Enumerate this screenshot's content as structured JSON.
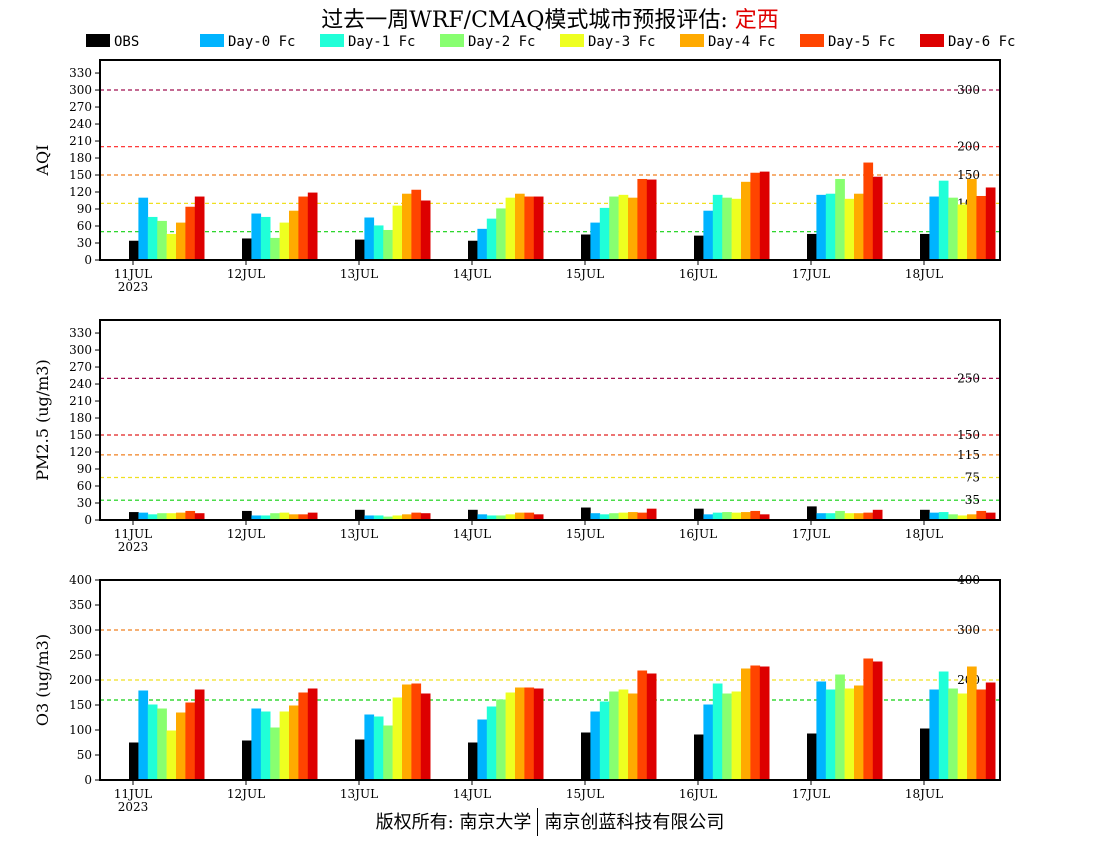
{
  "title": {
    "prefix": "过去一周WRF/CMAQ模式城市预报评估: ",
    "city": "定西"
  },
  "footer": {
    "left": "版权所有: 南京大学",
    "right": "南京创蓝科技有限公司"
  },
  "legend": [
    {
      "label": "OBS",
      "color": "#000000"
    },
    {
      "label": "Day-0 Fc",
      "color": "#00b4ff"
    },
    {
      "label": "Day-1 Fc",
      "color": "#20ffd8"
    },
    {
      "label": "Day-2 Fc",
      "color": "#88ff70"
    },
    {
      "label": "Day-3 Fc",
      "color": "#eeff20"
    },
    {
      "label": "Day-4 Fc",
      "color": "#ffaa00"
    },
    {
      "label": "Day-5 Fc",
      "color": "#ff4400"
    },
    {
      "label": "Day-6 Fc",
      "color": "#dd0000"
    }
  ],
  "chart_data": [
    {
      "type": "bar",
      "ylabel": "AQI",
      "ylim": [
        0,
        353
      ],
      "yticks": [
        0,
        30,
        60,
        90,
        120,
        150,
        180,
        210,
        240,
        270,
        300,
        330
      ],
      "categories": [
        "11JUL",
        "12JUL",
        "13JUL",
        "14JUL",
        "15JUL",
        "16JUL",
        "17JUL",
        "18JUL"
      ],
      "year_label": "2023",
      "ref_lines": [
        {
          "value": 300,
          "label": "300",
          "color": "#a01050"
        },
        {
          "value": 200,
          "label": "200",
          "color": "#ff2020"
        },
        {
          "value": 150,
          "label": "150",
          "color": "#f08020"
        },
        {
          "value": 100,
          "label": "100",
          "color": "#f0e020"
        },
        {
          "value": 50,
          "label": "50",
          "color": "#10d010"
        }
      ],
      "series": [
        {
          "name": "OBS",
          "values": [
            34,
            38,
            36,
            34,
            45,
            43,
            46,
            46
          ]
        },
        {
          "name": "Day-0 Fc",
          "values": [
            110,
            82,
            75,
            55,
            66,
            87,
            115,
            112
          ]
        },
        {
          "name": "Day-1 Fc",
          "values": [
            76,
            76,
            61,
            73,
            92,
            115,
            117,
            140
          ]
        },
        {
          "name": "Day-2 Fc",
          "values": [
            69,
            39,
            53,
            91,
            112,
            110,
            143,
            110
          ]
        },
        {
          "name": "Day-3 Fc",
          "values": [
            46,
            66,
            96,
            110,
            115,
            108,
            108,
            98
          ]
        },
        {
          "name": "Day-4 Fc",
          "values": [
            66,
            87,
            117,
            117,
            110,
            138,
            117,
            143
          ]
        },
        {
          "name": "Day-5 Fc",
          "values": [
            94,
            112,
            124,
            112,
            143,
            154,
            172,
            113
          ]
        },
        {
          "name": "Day-6 Fc",
          "values": [
            112,
            119,
            105,
            112,
            142,
            156,
            147,
            128
          ]
        }
      ]
    },
    {
      "type": "bar",
      "ylabel": "PM2.5 (ug/m3)",
      "ylim": [
        0,
        353
      ],
      "yticks": [
        0,
        30,
        60,
        90,
        120,
        150,
        180,
        210,
        240,
        270,
        300,
        330
      ],
      "categories": [
        "11JUL",
        "12JUL",
        "13JUL",
        "14JUL",
        "15JUL",
        "16JUL",
        "17JUL",
        "18JUL"
      ],
      "year_label": "2023",
      "ref_lines": [
        {
          "value": 250,
          "label": "250",
          "color": "#a01050"
        },
        {
          "value": 150,
          "label": "150",
          "color": "#e02020"
        },
        {
          "value": 115,
          "label": "115",
          "color": "#f08020"
        },
        {
          "value": 75,
          "label": "75",
          "color": "#f0e020"
        },
        {
          "value": 35,
          "label": "35",
          "color": "#10d010"
        }
      ],
      "series": [
        {
          "name": "OBS",
          "values": [
            14,
            16,
            18,
            18,
            22,
            20,
            24,
            18
          ]
        },
        {
          "name": "Day-0 Fc",
          "values": [
            13,
            8,
            8,
            10,
            12,
            10,
            12,
            13
          ]
        },
        {
          "name": "Day-1 Fc",
          "values": [
            10,
            8,
            8,
            8,
            10,
            13,
            12,
            14
          ]
        },
        {
          "name": "Day-2 Fc",
          "values": [
            12,
            12,
            6,
            8,
            12,
            14,
            16,
            10
          ]
        },
        {
          "name": "Day-3 Fc",
          "values": [
            12,
            13,
            8,
            10,
            13,
            13,
            12,
            8
          ]
        },
        {
          "name": "Day-4 Fc",
          "values": [
            13,
            10,
            10,
            13,
            14,
            14,
            12,
            10
          ]
        },
        {
          "name": "Day-5 Fc",
          "values": [
            16,
            10,
            13,
            13,
            13,
            16,
            13,
            16
          ]
        },
        {
          "name": "Day-6 Fc",
          "values": [
            12,
            13,
            12,
            10,
            20,
            10,
            18,
            13
          ]
        }
      ]
    },
    {
      "type": "bar",
      "ylabel": "O3 (ug/m3)",
      "ylim": [
        0,
        400
      ],
      "yticks": [
        0,
        50,
        100,
        150,
        200,
        250,
        300,
        350,
        400
      ],
      "categories": [
        "11JUL",
        "12JUL",
        "13JUL",
        "14JUL",
        "15JUL",
        "16JUL",
        "17JUL",
        "18JUL"
      ],
      "year_label": "2023",
      "ref_lines": [
        {
          "value": 400,
          "label": "400",
          "color": "#ff2020"
        },
        {
          "value": 300,
          "label": "300",
          "color": "#f08020"
        },
        {
          "value": 200,
          "label": "200",
          "color": "#f0e020"
        },
        {
          "value": 160,
          "label": "160",
          "color": "#10d010"
        }
      ],
      "series": [
        {
          "name": "OBS",
          "values": [
            75,
            79,
            81,
            75,
            95,
            91,
            93,
            103
          ]
        },
        {
          "name": "Day-0 Fc",
          "values": [
            179,
            143,
            131,
            121,
            137,
            151,
            197,
            181
          ]
        },
        {
          "name": "Day-1 Fc",
          "values": [
            151,
            137,
            127,
            147,
            157,
            193,
            181,
            217
          ]
        },
        {
          "name": "Day-2 Fc",
          "values": [
            143,
            105,
            109,
            161,
            177,
            173,
            211,
            183
          ]
        },
        {
          "name": "Day-3 Fc",
          "values": [
            99,
            137,
            165,
            175,
            181,
            177,
            183,
            173
          ]
        },
        {
          "name": "Day-4 Fc",
          "values": [
            135,
            149,
            191,
            185,
            173,
            223,
            189,
            227
          ]
        },
        {
          "name": "Day-5 Fc",
          "values": [
            155,
            175,
            193,
            185,
            219,
            229,
            243,
            181
          ]
        },
        {
          "name": "Day-6 Fc",
          "values": [
            181,
            183,
            173,
            183,
            213,
            227,
            237,
            195
          ]
        }
      ]
    }
  ]
}
